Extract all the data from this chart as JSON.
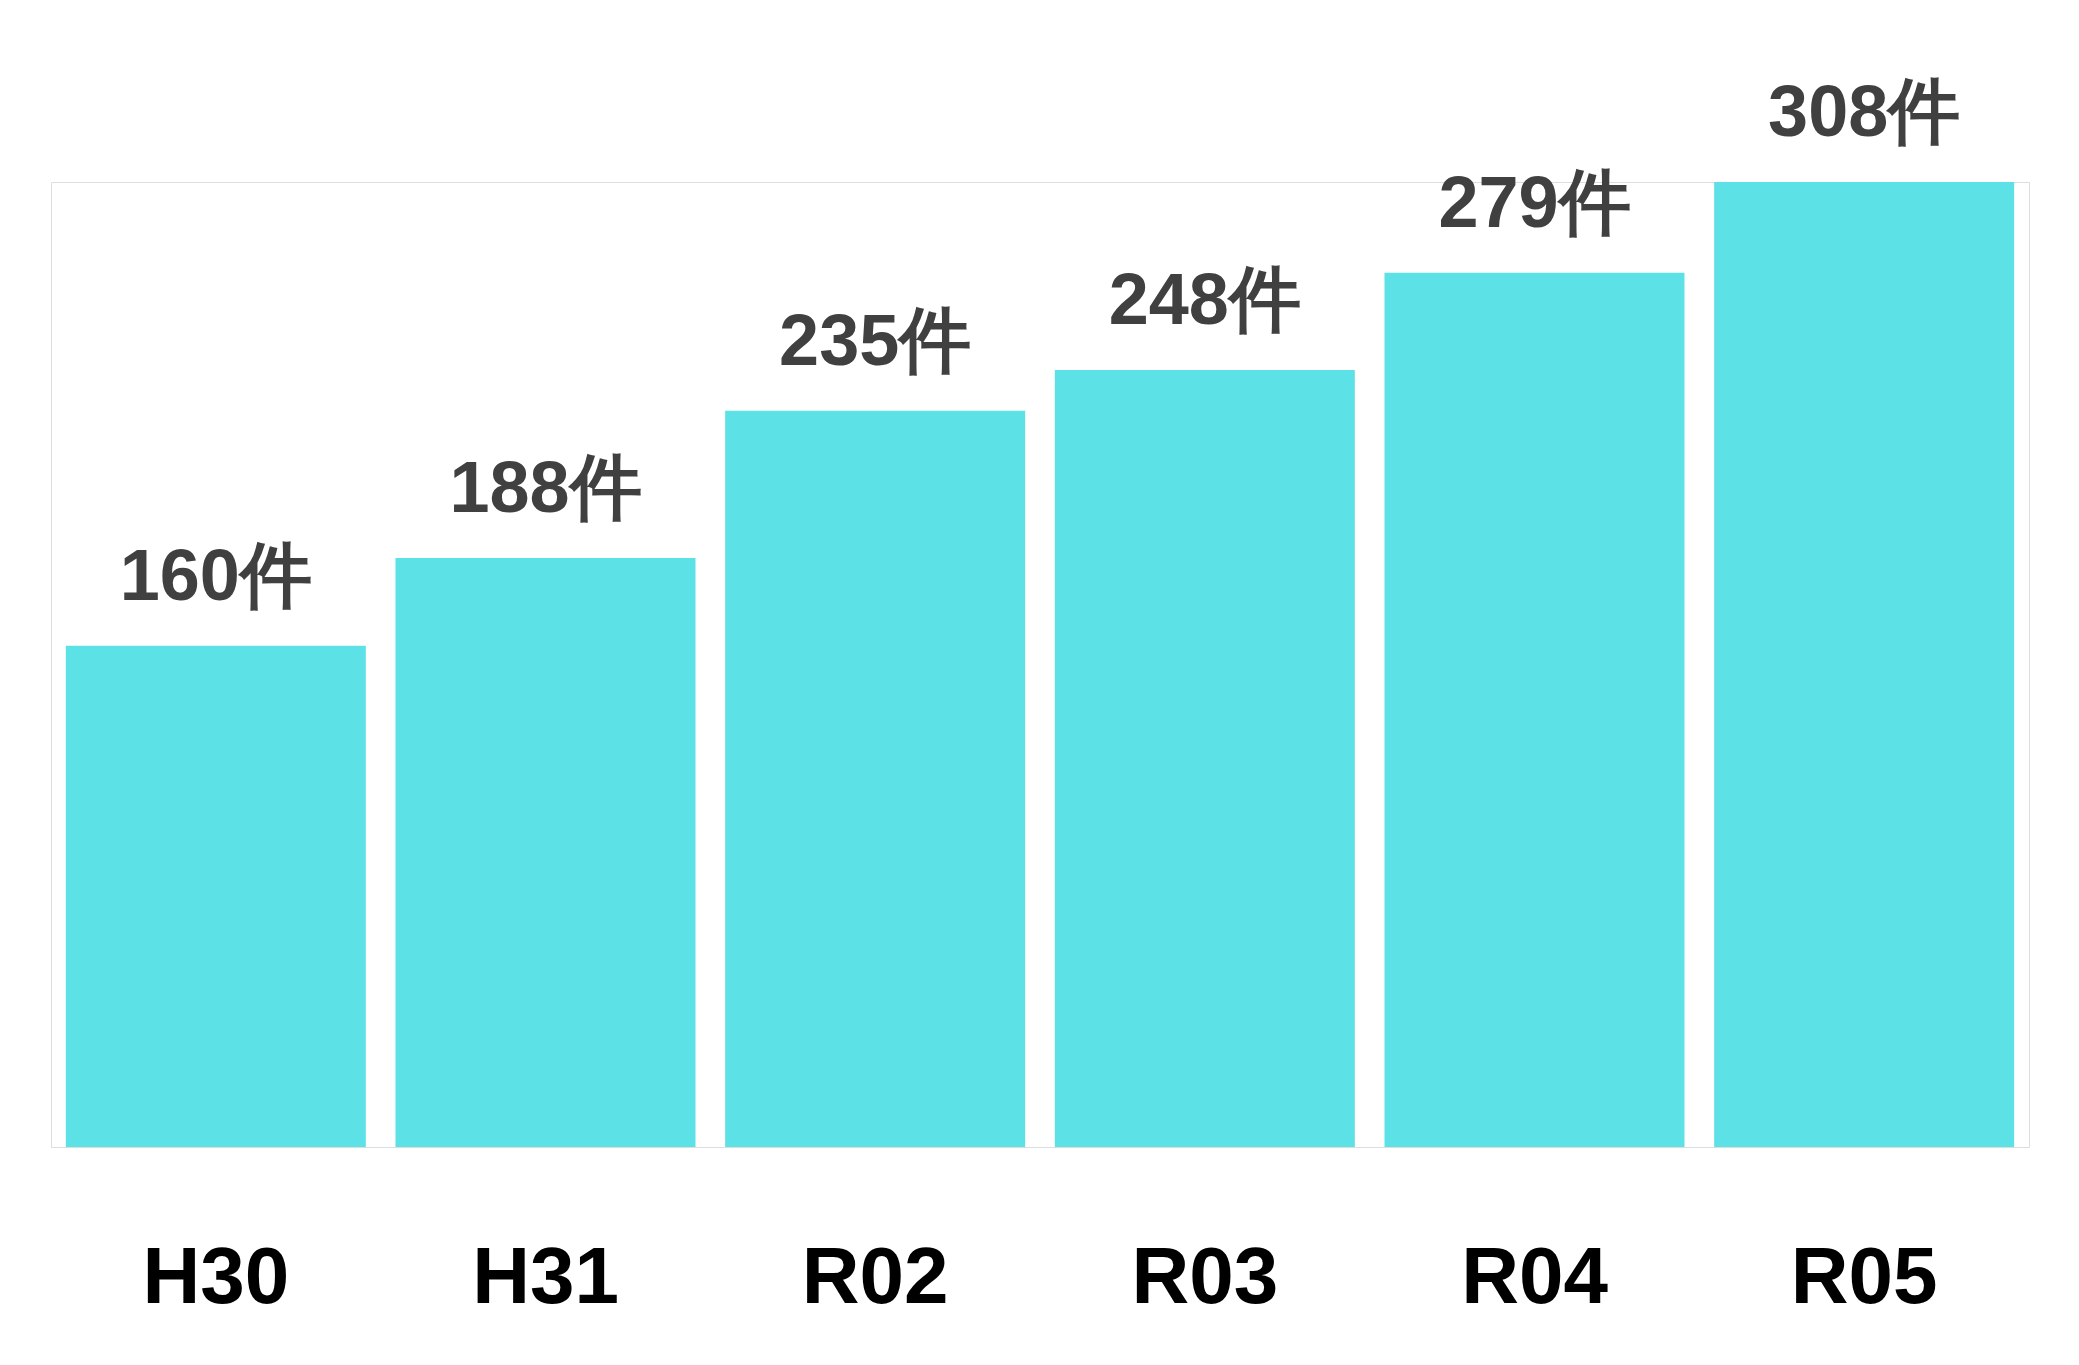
{
  "chart_data": {
    "type": "bar",
    "categories": [
      "H30",
      "H31",
      "R02",
      "R03",
      "R04",
      "R05"
    ],
    "values": [
      160,
      188,
      235,
      248,
      279,
      308
    ],
    "color": "#5ce1e6",
    "value_labels": [
      "160件",
      "188件",
      "235件",
      "248件",
      "279件",
      "308件"
    ],
    "grid": false
  }
}
